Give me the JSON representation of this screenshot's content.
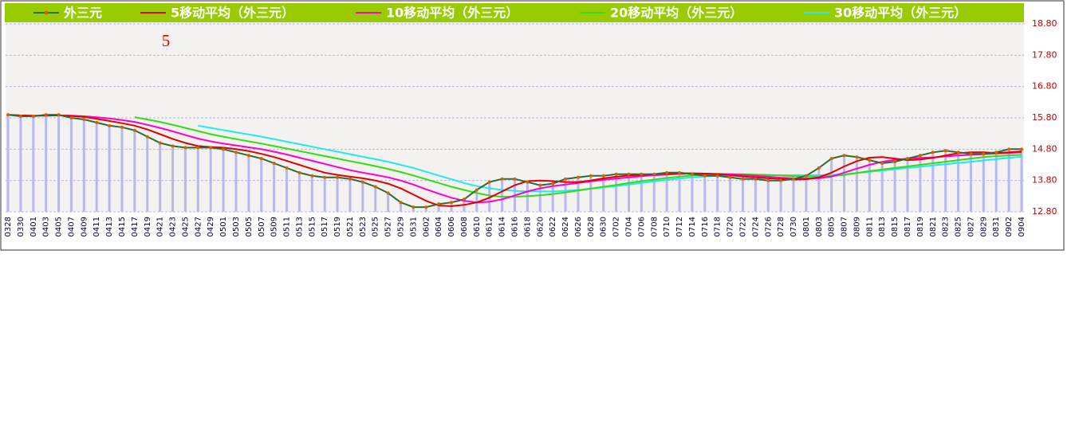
{
  "chart_data": {
    "type": "line",
    "annotation": "5",
    "categories": [
      "0328",
      "0330",
      "0401",
      "0403",
      "0405",
      "0407",
      "0409",
      "0411",
      "0413",
      "0415",
      "0417",
      "0419",
      "0421",
      "0423",
      "0425",
      "0427",
      "0429",
      "0501",
      "0503",
      "0505",
      "0507",
      "0509",
      "0511",
      "0513",
      "0515",
      "0517",
      "0519",
      "0521",
      "0523",
      "0525",
      "0527",
      "0529",
      "0531",
      "0602",
      "0604",
      "0606",
      "0608",
      "0610",
      "0612",
      "0614",
      "0616",
      "0618",
      "0620",
      "0622",
      "0624",
      "0626",
      "0628",
      "0630",
      "0702",
      "0704",
      "0706",
      "0708",
      "0710",
      "0712",
      "0714",
      "0716",
      "0718",
      "0720",
      "0722",
      "0724",
      "0726",
      "0728",
      "0730",
      "0801",
      "0803",
      "0805",
      "0807",
      "0809",
      "0811",
      "0813",
      "0815",
      "0817",
      "0819",
      "0821",
      "0823",
      "0825",
      "0827",
      "0829",
      "0831",
      "0902",
      "0904"
    ],
    "series": [
      {
        "name": "外三元",
        "color": "#2f6b2f",
        "values": [
          15.9,
          15.85,
          15.85,
          15.9,
          15.9,
          15.8,
          15.75,
          15.65,
          15.55,
          15.5,
          15.4,
          15.2,
          15.0,
          14.9,
          14.85,
          14.85,
          14.85,
          14.8,
          14.7,
          14.6,
          14.5,
          14.35,
          14.2,
          14.05,
          13.95,
          13.9,
          13.9,
          13.85,
          13.75,
          13.6,
          13.4,
          13.1,
          12.95,
          12.95,
          13.05,
          13.1,
          13.2,
          13.5,
          13.75,
          13.85,
          13.85,
          13.75,
          13.65,
          13.7,
          13.85,
          13.9,
          13.95,
          13.95,
          14.0,
          14.0,
          14.0,
          14.0,
          14.05,
          14.05,
          14.0,
          13.95,
          13.95,
          13.9,
          13.85,
          13.85,
          13.8,
          13.8,
          13.85,
          13.95,
          14.2,
          14.5,
          14.6,
          14.55,
          14.45,
          14.35,
          14.4,
          14.5,
          14.6,
          14.7,
          14.75,
          14.7,
          14.65,
          14.65,
          14.7,
          14.8,
          14.8
        ]
      },
      {
        "name": "5移动平均（外三元）",
        "color": "#e00000",
        "values": [
          15.9,
          15.88,
          15.87,
          15.87,
          15.88,
          15.86,
          15.83,
          15.77,
          15.7,
          15.63,
          15.55,
          15.43,
          15.28,
          15.13,
          15.0,
          14.9,
          14.87,
          14.85,
          14.8,
          14.74,
          14.65,
          14.55,
          14.43,
          14.3,
          14.17,
          14.05,
          13.98,
          13.92,
          13.87,
          13.8,
          13.7,
          13.55,
          13.35,
          13.15,
          13.0,
          12.98,
          13.02,
          13.1,
          13.25,
          13.45,
          13.65,
          13.78,
          13.8,
          13.78,
          13.75,
          13.75,
          13.8,
          13.87,
          13.92,
          13.96,
          13.98,
          14.0,
          14.02,
          14.03,
          14.03,
          14.02,
          14.0,
          13.97,
          13.93,
          13.9,
          13.87,
          13.85,
          13.83,
          13.84,
          13.9,
          14.05,
          14.25,
          14.42,
          14.53,
          14.55,
          14.5,
          14.45,
          14.47,
          14.52,
          14.6,
          14.67,
          14.7,
          14.7,
          14.68,
          14.7,
          14.73
        ]
      },
      {
        "name": "10移动平均（外三元）",
        "color": "#ff00cc",
        "values": [
          null,
          null,
          null,
          null,
          15.88,
          15.87,
          15.85,
          15.82,
          15.78,
          15.73,
          15.67,
          15.58,
          15.48,
          15.37,
          15.25,
          15.14,
          15.05,
          14.98,
          14.92,
          14.86,
          14.8,
          14.72,
          14.63,
          14.53,
          14.43,
          14.33,
          14.23,
          14.13,
          14.05,
          13.98,
          13.9,
          13.8,
          13.67,
          13.52,
          13.38,
          13.25,
          13.15,
          13.1,
          13.12,
          13.2,
          13.32,
          13.45,
          13.55,
          13.62,
          13.67,
          13.72,
          13.77,
          13.82,
          13.86,
          13.9,
          13.94,
          13.97,
          13.99,
          14.01,
          14.02,
          14.02,
          14.01,
          14.0,
          13.98,
          13.95,
          13.92,
          13.89,
          13.87,
          13.86,
          13.87,
          13.93,
          14.05,
          14.18,
          14.3,
          14.4,
          14.46,
          14.5,
          14.52,
          14.54,
          14.57,
          14.6,
          14.62,
          14.64,
          14.66,
          14.68,
          14.7
        ]
      },
      {
        "name": "20移动平均（外三元）",
        "color": "#33dd11",
        "values": [
          null,
          null,
          null,
          null,
          null,
          null,
          null,
          null,
          null,
          null,
          15.82,
          15.75,
          15.67,
          15.58,
          15.48,
          15.38,
          15.28,
          15.2,
          15.12,
          15.05,
          14.98,
          14.9,
          14.82,
          14.74,
          14.66,
          14.58,
          14.5,
          14.42,
          14.34,
          14.26,
          14.17,
          14.07,
          13.96,
          13.84,
          13.72,
          13.6,
          13.5,
          13.4,
          13.32,
          13.28,
          13.28,
          13.3,
          13.33,
          13.37,
          13.42,
          13.48,
          13.54,
          13.6,
          13.66,
          13.72,
          13.78,
          13.83,
          13.88,
          13.92,
          13.96,
          13.99,
          14.0,
          14.0,
          14.0,
          13.99,
          13.98,
          13.96,
          13.94,
          13.93,
          13.92,
          13.94,
          13.98,
          14.04,
          14.1,
          14.15,
          14.2,
          14.25,
          14.3,
          14.35,
          14.4,
          14.45,
          14.5,
          14.55,
          14.58,
          14.6,
          14.62
        ]
      },
      {
        "name": "30移动平均（外三元）",
        "color": "#22e8f0",
        "values": [
          null,
          null,
          null,
          null,
          null,
          null,
          null,
          null,
          null,
          null,
          null,
          null,
          null,
          null,
          null,
          15.55,
          15.48,
          15.41,
          15.34,
          15.27,
          15.2,
          15.12,
          15.04,
          14.96,
          14.88,
          14.8,
          14.72,
          14.64,
          14.56,
          14.48,
          14.4,
          14.3,
          14.2,
          14.08,
          13.96,
          13.84,
          13.72,
          13.62,
          13.55,
          13.5,
          13.47,
          13.45,
          13.45,
          13.45,
          13.47,
          13.5,
          13.54,
          13.58,
          13.62,
          13.67,
          13.72,
          13.77,
          13.82,
          13.86,
          13.9,
          13.93,
          13.95,
          13.96,
          13.97,
          13.97,
          13.97,
          13.97,
          13.97,
          13.97,
          13.97,
          13.98,
          14.0,
          14.04,
          14.08,
          14.12,
          14.16,
          14.2,
          14.24,
          14.28,
          14.32,
          14.36,
          14.4,
          14.44,
          14.48,
          14.52,
          14.56
        ]
      }
    ],
    "ylim": [
      12.8,
      18.8
    ],
    "yticks": [
      {
        "value": 12.8,
        "label": "12.80"
      },
      {
        "value": 13.8,
        "label": "13.80"
      },
      {
        "value": 14.8,
        "label": "14.80"
      },
      {
        "value": 15.8,
        "label": "15.80"
      },
      {
        "value": 16.8,
        "label": "16.80"
      },
      {
        "value": 17.8,
        "label": "17.80"
      },
      {
        "value": 18.8,
        "label": "18.80"
      }
    ],
    "grid": true,
    "legend": "top",
    "bar_color": "#b8b8f0",
    "tick_color": "#c00000"
  }
}
